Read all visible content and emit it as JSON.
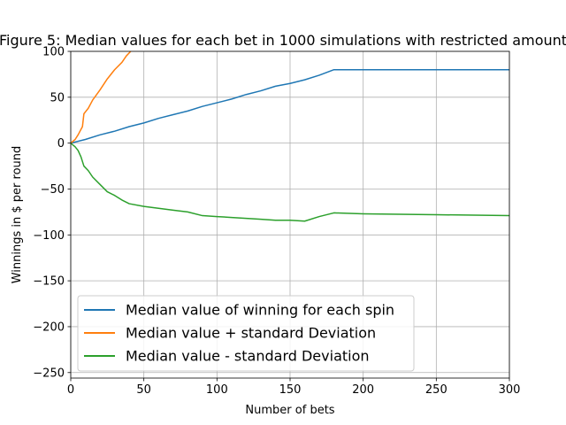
{
  "chart_data": {
    "type": "line",
    "title": "Figure 5:  Median values for each bet in 1000 simulations with restricted amount",
    "xlabel": "Number of bets",
    "ylabel": "Winnings in $ per round",
    "xlim": [
      0,
      300
    ],
    "ylim": [
      -256,
      100
    ],
    "xticks": [
      0,
      50,
      100,
      150,
      200,
      250,
      300
    ],
    "yticks": [
      -250,
      -200,
      -150,
      -100,
      -50,
      0,
      50,
      100
    ],
    "grid": true,
    "legend_position": "lower-left",
    "series": [
      {
        "name": "Median value of winning for each spin",
        "color": "#1f77b4",
        "points": [
          [
            0,
            0
          ],
          [
            10,
            4
          ],
          [
            20,
            9
          ],
          [
            30,
            13
          ],
          [
            40,
            18
          ],
          [
            50,
            22
          ],
          [
            60,
            27
          ],
          [
            70,
            31
          ],
          [
            80,
            35
          ],
          [
            90,
            40
          ],
          [
            100,
            44
          ],
          [
            110,
            48
          ],
          [
            120,
            53
          ],
          [
            130,
            57
          ],
          [
            140,
            62
          ],
          [
            150,
            65
          ],
          [
            160,
            69
          ],
          [
            170,
            74
          ],
          [
            180,
            80
          ],
          [
            200,
            80
          ],
          [
            250,
            80
          ],
          [
            300,
            80
          ]
        ]
      },
      {
        "name": "Median value + standard Deviation",
        "color": "#ff7f0e",
        "points": [
          [
            0,
            0
          ],
          [
            3,
            4
          ],
          [
            5,
            9
          ],
          [
            8,
            18
          ],
          [
            9,
            32
          ],
          [
            12,
            38
          ],
          [
            15,
            47
          ],
          [
            20,
            58
          ],
          [
            25,
            70
          ],
          [
            30,
            80
          ],
          [
            35,
            88
          ],
          [
            38,
            95
          ],
          [
            41,
            100
          ]
        ]
      },
      {
        "name": "Median value - standard Deviation",
        "color": "#2ca02c",
        "points": [
          [
            0,
            0
          ],
          [
            3,
            -4
          ],
          [
            5,
            -8
          ],
          [
            7,
            -15
          ],
          [
            9,
            -25
          ],
          [
            12,
            -30
          ],
          [
            15,
            -37
          ],
          [
            20,
            -45
          ],
          [
            25,
            -53
          ],
          [
            30,
            -57
          ],
          [
            35,
            -62
          ],
          [
            40,
            -66
          ],
          [
            50,
            -69
          ],
          [
            60,
            -71
          ],
          [
            70,
            -73
          ],
          [
            80,
            -75
          ],
          [
            90,
            -79
          ],
          [
            100,
            -80
          ],
          [
            110,
            -81
          ],
          [
            120,
            -82
          ],
          [
            130,
            -83
          ],
          [
            140,
            -84
          ],
          [
            150,
            -84
          ],
          [
            160,
            -85
          ],
          [
            170,
            -80
          ],
          [
            180,
            -76
          ],
          [
            200,
            -77
          ],
          [
            250,
            -78
          ],
          [
            300,
            -79
          ]
        ]
      }
    ]
  }
}
